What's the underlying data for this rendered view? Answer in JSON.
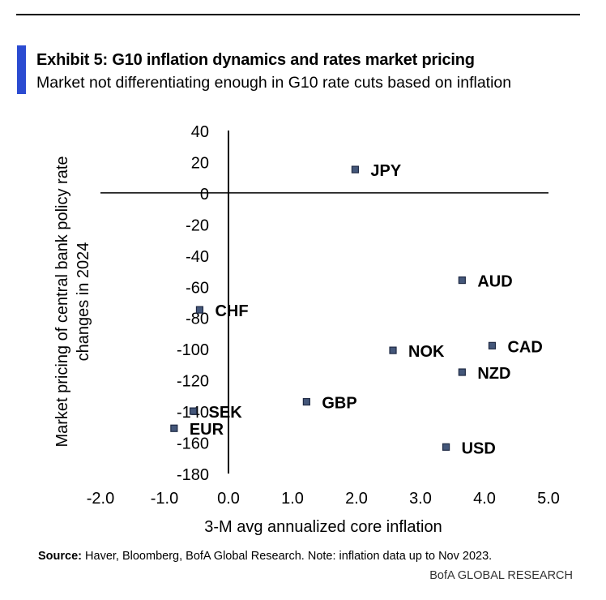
{
  "header": {
    "title": "Exhibit 5: G10 inflation dynamics and rates market pricing",
    "subtitle": "Market not differentiating enough in G10 rate cuts based on inflation"
  },
  "footer": {
    "source_label": "Source:",
    "source_text": " Haver, Bloomberg, BofA Global Research. Note: inflation data up to Nov 2023.",
    "brand": "BofA GLOBAL RESEARCH"
  },
  "colors": {
    "accent": "#2b4bd1",
    "marker_fill": "#44577a",
    "marker_stroke": "#1f2a44"
  },
  "chart_data": {
    "type": "scatter",
    "title": "",
    "xlabel": "3-M avg annualized core inflation",
    "ylabel_lines": [
      "Market pricing of central bank policy rate",
      "changes in 2024"
    ],
    "xlim": [
      -2.0,
      5.0
    ],
    "ylim": [
      -180,
      40
    ],
    "x_ticks": [
      "-2.0",
      "-1.0",
      "0.0",
      "1.0",
      "2.0",
      "3.0",
      "4.0",
      "5.0"
    ],
    "y_ticks": [
      "40",
      "20",
      "0",
      "-20",
      "-40",
      "-60",
      "-80",
      "-100",
      "-120",
      "-140",
      "-160",
      "-180"
    ],
    "points": [
      {
        "label": "JPY",
        "x": 1.98,
        "y": 15
      },
      {
        "label": "AUD",
        "x": 3.65,
        "y": -56
      },
      {
        "label": "CHF",
        "x": -0.45,
        "y": -75
      },
      {
        "label": "CAD",
        "x": 4.12,
        "y": -98
      },
      {
        "label": "NOK",
        "x": 2.57,
        "y": -101
      },
      {
        "label": "NZD",
        "x": 3.65,
        "y": -115
      },
      {
        "label": "GBP",
        "x": 1.22,
        "y": -134
      },
      {
        "label": "SEK",
        "x": -0.55,
        "y": -140
      },
      {
        "label": "EUR",
        "x": -0.85,
        "y": -151
      },
      {
        "label": "USD",
        "x": 3.4,
        "y": -163
      }
    ]
  }
}
